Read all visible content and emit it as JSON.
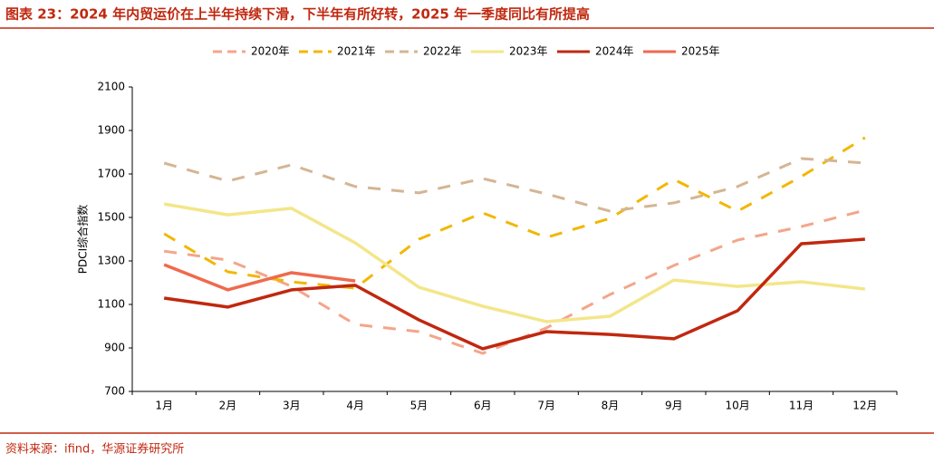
{
  "chart_data": {
    "type": "line",
    "title": "图表 23：2024 年内贸运价在上半年持续下滑，下半年有所好转，2025 年一季度同比有所提高",
    "source": "资料来源：ifind，华源证券研究所",
    "y_label": "PDCI综合指数",
    "categories": [
      "1月",
      "2月",
      "3月",
      "4月",
      "5月",
      "6月",
      "7月",
      "8月",
      "9月",
      "10月",
      "11月",
      "12月"
    ],
    "ylim": [
      700,
      2100
    ],
    "yticks": [
      700,
      900,
      1100,
      1300,
      1500,
      1700,
      1900,
      2100
    ],
    "series": [
      {
        "name": "2020年",
        "color": "#f4a58a",
        "dashed": true,
        "values": [
          1345,
          1304,
          1183,
          1008,
          975,
          875,
          992,
          1146,
          1279,
          1396,
          1458,
          1533
        ]
      },
      {
        "name": "2021年",
        "color": "#f2b705",
        "dashed": true,
        "values": [
          1425,
          1250,
          1204,
          1175,
          1400,
          1521,
          1408,
          1496,
          1675,
          1529,
          1688,
          1867
        ]
      },
      {
        "name": "2022年",
        "color": "#d4b594",
        "dashed": true,
        "values": [
          1750,
          1667,
          1742,
          1642,
          1613,
          1679,
          1608,
          1529,
          1567,
          1642,
          1771,
          1750
        ]
      },
      {
        "name": "2023年",
        "color": "#f3e68a",
        "dashed": false,
        "values": [
          1562,
          1512,
          1542,
          1383,
          1179,
          1092,
          1021,
          1046,
          1212,
          1183,
          1204,
          1171
        ]
      },
      {
        "name": "2024年",
        "color": "#c0280f",
        "dashed": false,
        "values": [
          1129,
          1088,
          1167,
          1188,
          1029,
          896,
          975,
          962,
          942,
          1071,
          1379,
          1400
        ]
      },
      {
        "name": "2025年",
        "color": "#ef6a4d",
        "dashed": false,
        "values": [
          1283,
          1167,
          1246,
          1208,
          null,
          null,
          null,
          null,
          null,
          null,
          null,
          null
        ]
      }
    ]
  }
}
